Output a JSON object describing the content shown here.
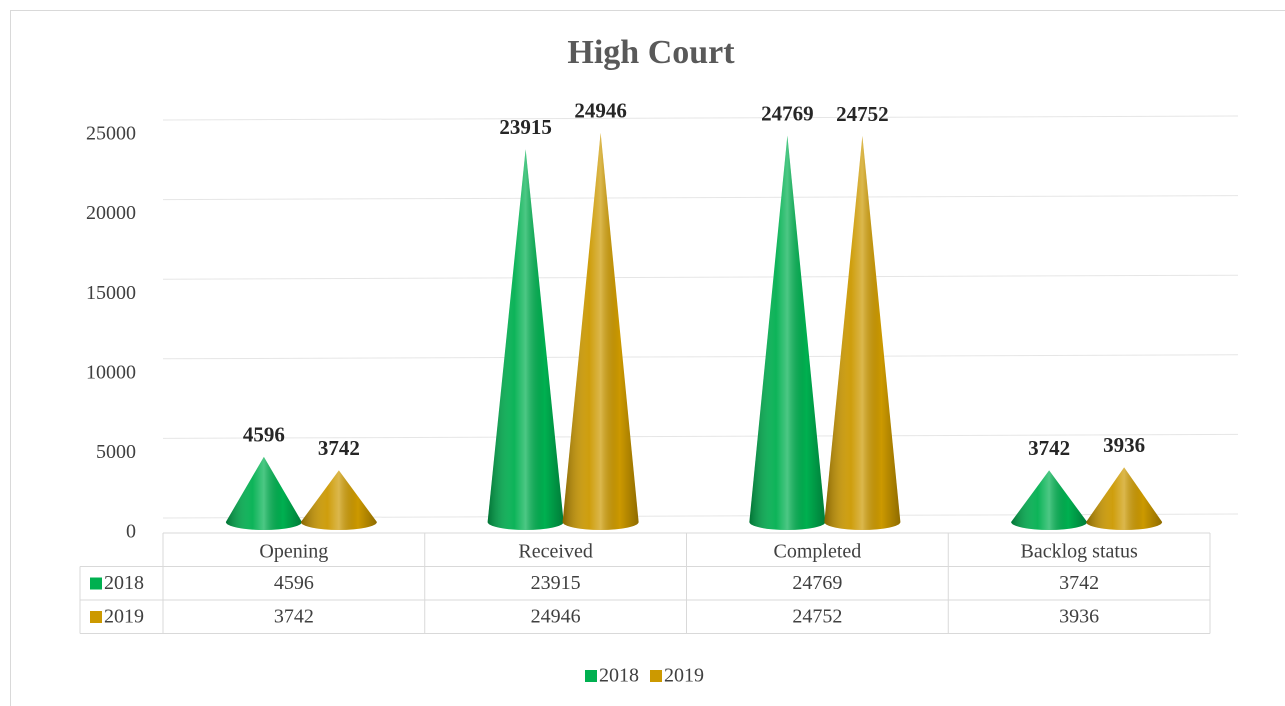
{
  "chart_data": {
    "type": "cone",
    "title": "High Court",
    "categories": [
      "Opening",
      "Received",
      "Completed",
      "Backlog status"
    ],
    "series": [
      {
        "name": "2018",
        "color": "#00b050",
        "values": [
          4596,
          23915,
          24769,
          3742
        ]
      },
      {
        "name": "2019",
        "color": "#cc9900",
        "values": [
          3742,
          24946,
          24752,
          3936
        ]
      }
    ],
    "ylim": [
      0,
      25000
    ],
    "yticks": [
      0,
      5000,
      10000,
      15000,
      20000,
      25000
    ],
    "grid": true,
    "data_table": true,
    "legend": "bottom"
  }
}
